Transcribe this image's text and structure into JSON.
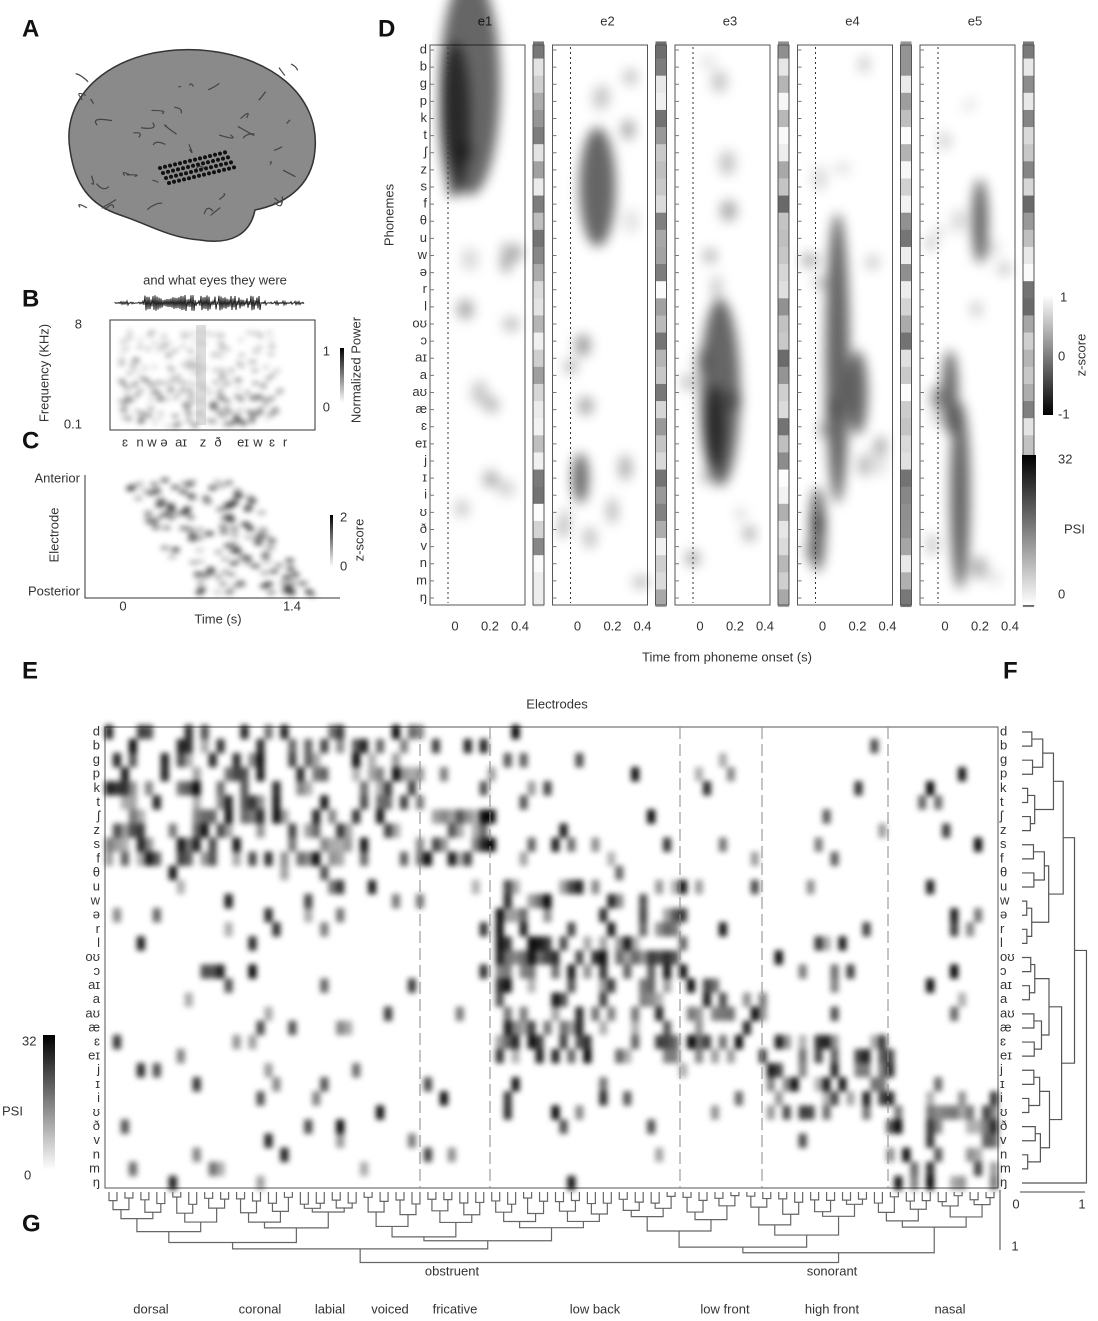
{
  "panel_labels": [
    "A",
    "B",
    "C",
    "D",
    "E",
    "F",
    "G"
  ],
  "b": {
    "sentence": "and what eyes they were",
    "y_label": "Frequency (KHz)",
    "y_max": "8",
    "y_min": "0.1",
    "cbar_max": "1",
    "cbar_min": "0",
    "cbar_label": "Normalized Power",
    "phones": [
      "ɛ",
      "n",
      "w",
      "ə",
      "aɪ",
      "z",
      "ð",
      "eɪ",
      "w",
      "ɛ",
      "r"
    ]
  },
  "c": {
    "top": "Anterior",
    "bottom": "Posterior",
    "y_label": "Electrode",
    "x_ticks": [
      "0",
      "1.4"
    ],
    "x_label": "Time (s)",
    "cbar_max": "2",
    "cbar_min": "0",
    "cbar_label": "z-score"
  },
  "d": {
    "y_label": "Phonemes",
    "electrodes": [
      "e1",
      "e2",
      "e3",
      "e4",
      "e5"
    ],
    "x_ticks": [
      "0",
      "0.2",
      "0.4"
    ],
    "x_label": "Time from phoneme onset (s)",
    "z_ticks": [
      "1",
      "0",
      "-1"
    ],
    "z_label": "z-score",
    "psi_max": "32",
    "psi_label": "PSI",
    "psi_min": "0"
  },
  "phonemes": [
    "d",
    "b",
    "g",
    "p",
    "k",
    "t",
    "ʃ",
    "z",
    "s",
    "f",
    "θ",
    "u",
    "w",
    "ə",
    "r",
    "l",
    "oʊ",
    "ɔ",
    "aɪ",
    "a",
    "aʊ",
    "æ",
    "ɛ",
    "eɪ",
    "j",
    "ɪ",
    "i",
    "ʊ",
    "ð",
    "v",
    "n",
    "m",
    "ŋ"
  ],
  "e": {
    "title": "Electrodes",
    "cbar_max": "32",
    "cbar_label": "PSI",
    "cbar_min": "0",
    "groups": [
      "obstruent",
      "sonorant"
    ],
    "features": [
      "dorsal",
      "coronal",
      "labial",
      "voiced",
      "fricative",
      "low back",
      "low front",
      "high front",
      "nasal"
    ]
  },
  "f": {
    "ticks": [
      "0",
      "1"
    ]
  },
  "g": {
    "tick": "1"
  }
}
